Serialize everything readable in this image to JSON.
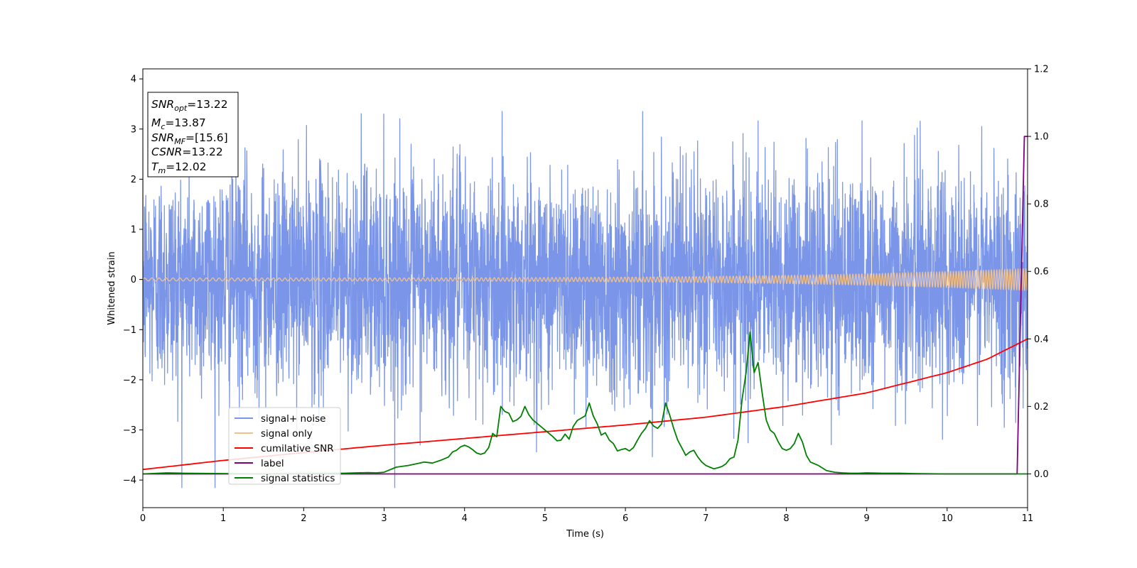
{
  "chart_data": {
    "type": "line",
    "xlabel": "Time (s)",
    "ylabel": "Whitened strain",
    "xlim": [
      0,
      11
    ],
    "ylim_left": [
      -4.55,
      4.2
    ],
    "ylim_right": [
      -0.1,
      1.2
    ],
    "x_ticks": [
      "0",
      "1",
      "2",
      "3",
      "4",
      "5",
      "6",
      "7",
      "8",
      "9",
      "10",
      "11"
    ],
    "y_ticks_left": [
      "4",
      "3",
      "2",
      "1",
      "0",
      "−1",
      "−2",
      "−3",
      "−4"
    ],
    "y_ticks_right": [
      "1.2",
      "1.0",
      "0.8",
      "0.6",
      "0.4",
      "0.2",
      "0.0"
    ],
    "legend_position": "lower-left",
    "colors": {
      "signal_noise": "#7b96e8",
      "signal_only": "#f2c08a",
      "cumulative_snr": "#ff0000",
      "label": "#800080",
      "signal_statistics": "#008000"
    },
    "info_box": [
      {
        "name": "SNR",
        "sub": "opt",
        "value": "=13.22"
      },
      {
        "name": "M",
        "sub": "c",
        "value": "=13.87"
      },
      {
        "name": "SNR",
        "sub": "MF",
        "value": "=[15.6]"
      },
      {
        "name": "CSNR",
        "sub": "",
        "value": "=13.22"
      },
      {
        "name": "T",
        "sub": "m",
        "value": "=12.02"
      }
    ],
    "series": [
      {
        "name": "signal+ noise",
        "axis": "left",
        "style": "noise",
        "amplitude": 1.1,
        "min": -4.15,
        "max": 3.35
      },
      {
        "name": "signal only",
        "axis": "left",
        "style": "chirp",
        "amp_start": 0.03,
        "amp_end": 0.22
      },
      {
        "name": "cumilative SNR",
        "axis": "right",
        "x": [
          0,
          1,
          2,
          3,
          4,
          5,
          6,
          7,
          8,
          9,
          10,
          10.5,
          11
        ],
        "y": [
          0.013,
          0.04,
          0.063,
          0.085,
          0.105,
          0.125,
          0.145,
          0.168,
          0.2,
          0.24,
          0.3,
          0.34,
          0.4
        ]
      },
      {
        "name": "label",
        "axis": "right",
        "x": [
          0,
          10.87,
          10.96,
          11
        ],
        "y": [
          0.0,
          0.0,
          1.0,
          1.0
        ]
      },
      {
        "name": "signal statistics",
        "axis": "right",
        "x": [
          0,
          0.3,
          0.5,
          1,
          1.5,
          2,
          2.5,
          2.8,
          2.9,
          3.0,
          3.05,
          3.15,
          3.3,
          3.4,
          3.5,
          3.6,
          3.7,
          3.8,
          3.85,
          3.9,
          3.95,
          4.0,
          4.05,
          4.1,
          4.15,
          4.2,
          4.25,
          4.3,
          4.35,
          4.4,
          4.45,
          4.5,
          4.55,
          4.6,
          4.65,
          4.7,
          4.75,
          4.8,
          4.85,
          4.9,
          4.95,
          5.0,
          5.05,
          5.1,
          5.15,
          5.2,
          5.25,
          5.3,
          5.35,
          5.4,
          5.45,
          5.5,
          5.55,
          5.6,
          5.65,
          5.7,
          5.75,
          5.8,
          5.85,
          5.9,
          5.95,
          6.0,
          6.05,
          6.1,
          6.15,
          6.2,
          6.25,
          6.3,
          6.35,
          6.4,
          6.45,
          6.5,
          6.55,
          6.6,
          6.65,
          6.7,
          6.75,
          6.8,
          6.85,
          6.9,
          6.95,
          7.0,
          7.05,
          7.1,
          7.15,
          7.2,
          7.25,
          7.3,
          7.35,
          7.4,
          7.45,
          7.5,
          7.55,
          7.6,
          7.65,
          7.7,
          7.75,
          7.8,
          7.85,
          7.9,
          7.95,
          8.0,
          8.05,
          8.1,
          8.15,
          8.2,
          8.25,
          8.3,
          8.4,
          8.5,
          8.6,
          8.7,
          8.8,
          8.9,
          9.0,
          9.2,
          9.4,
          9.6,
          10,
          10.5,
          11
        ],
        "y": [
          0.0,
          0.003,
          0.002,
          0.001,
          0.0,
          0.001,
          0.002,
          0.004,
          0.003,
          0.005,
          0.01,
          0.02,
          0.025,
          0.03,
          0.035,
          0.032,
          0.04,
          0.05,
          0.065,
          0.07,
          0.08,
          0.085,
          0.08,
          0.072,
          0.062,
          0.058,
          0.062,
          0.078,
          0.12,
          0.11,
          0.2,
          0.185,
          0.18,
          0.155,
          0.16,
          0.17,
          0.2,
          0.175,
          0.16,
          0.15,
          0.14,
          0.13,
          0.12,
          0.11,
          0.098,
          0.1,
          0.118,
          0.103,
          0.14,
          0.158,
          0.165,
          0.172,
          0.21,
          0.172,
          0.148,
          0.115,
          0.122,
          0.1,
          0.09,
          0.068,
          0.072,
          0.075,
          0.068,
          0.078,
          0.1,
          0.12,
          0.135,
          0.158,
          0.142,
          0.135,
          0.148,
          0.21,
          0.175,
          0.135,
          0.1,
          0.078,
          0.055,
          0.065,
          0.07,
          0.05,
          0.035,
          0.025,
          0.02,
          0.015,
          0.018,
          0.022,
          0.03,
          0.045,
          0.05,
          0.1,
          0.22,
          0.3,
          0.42,
          0.3,
          0.33,
          0.24,
          0.16,
          0.13,
          0.12,
          0.095,
          0.075,
          0.07,
          0.075,
          0.09,
          0.12,
          0.095,
          0.055,
          0.035,
          0.025,
          0.01,
          0.005,
          0.003,
          0.002,
          0.002,
          0.003,
          0.002,
          0.002,
          0.001,
          0.0,
          0.0,
          0.0
        ]
      }
    ]
  }
}
